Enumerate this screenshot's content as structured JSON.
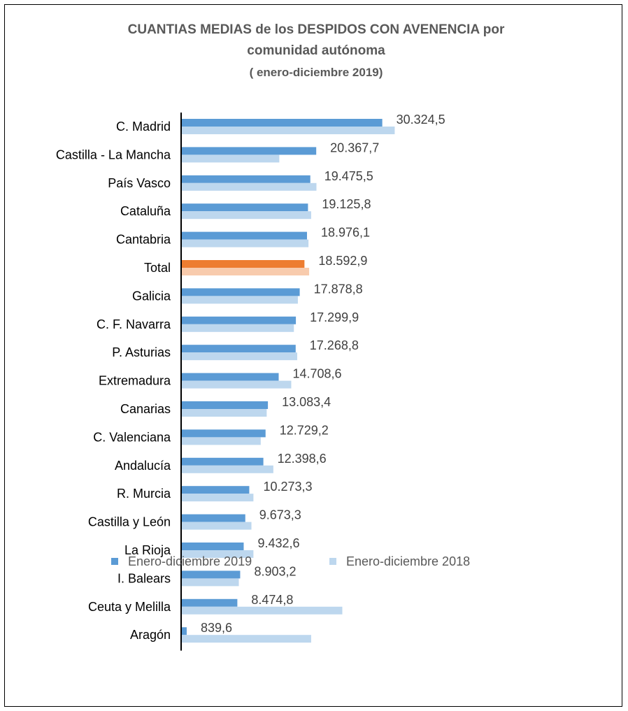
{
  "chart_data": {
    "type": "bar",
    "orientation": "horizontal",
    "title": [
      "CUANTIAS MEDIAS de los DESPIDOS CON AVENENCIA por",
      "comunidad autónoma",
      "( enero-diciembre 2019)"
    ],
    "categories": [
      "C. Madrid",
      "Castilla - La Mancha",
      "País Vasco",
      "Cataluña",
      "Cantabria",
      "Total",
      "Galicia",
      "C. F. Navarra",
      "P. Asturias",
      "Extremadura",
      "Canarias",
      "C. Valenciana",
      "Andalucía",
      "R. Murcia",
      "Castilla y León",
      "La Rioja",
      "I. Balears",
      "Ceuta y Melilla",
      "Aragón"
    ],
    "value_labels": [
      "30.324,5",
      "20.367,7",
      "19.475,5",
      "19.125,8",
      "18.976,1",
      "18.592,9",
      "17.878,8",
      "17.299,9",
      "17.268,8",
      "14.708,6",
      "13.083,4",
      "12.729,2",
      "12.398,6",
      "10.273,3",
      "9.673,3",
      "9.432,6",
      "8.903,2",
      "8.474,8",
      "839,6"
    ],
    "series": [
      {
        "name": "Enero-diciembre 2019",
        "color": "#5B9BD5",
        "values": [
          30324.5,
          20367.7,
          19475.5,
          19125.8,
          18976.1,
          18592.9,
          17878.8,
          17299.9,
          17268.8,
          14708.6,
          13083.4,
          12729.2,
          12398.6,
          10273.3,
          9673.3,
          9432.6,
          8903.2,
          8474.8,
          839.6
        ]
      },
      {
        "name": "Enero-diciembre  2018",
        "color": "#BDD7EE",
        "values": [
          32200,
          14800,
          20400,
          19600,
          19200,
          19300,
          17600,
          17000,
          17500,
          16600,
          12900,
          12000,
          13900,
          10900,
          10600,
          10900,
          8700,
          24300,
          19600
        ]
      }
    ],
    "highlight": {
      "category": "Total",
      "colors": [
        "#ED7D31",
        "#F8CBAD"
      ]
    },
    "xlim": [
      0,
      33000
    ],
    "grid": false,
    "legend_position": "bottom"
  }
}
